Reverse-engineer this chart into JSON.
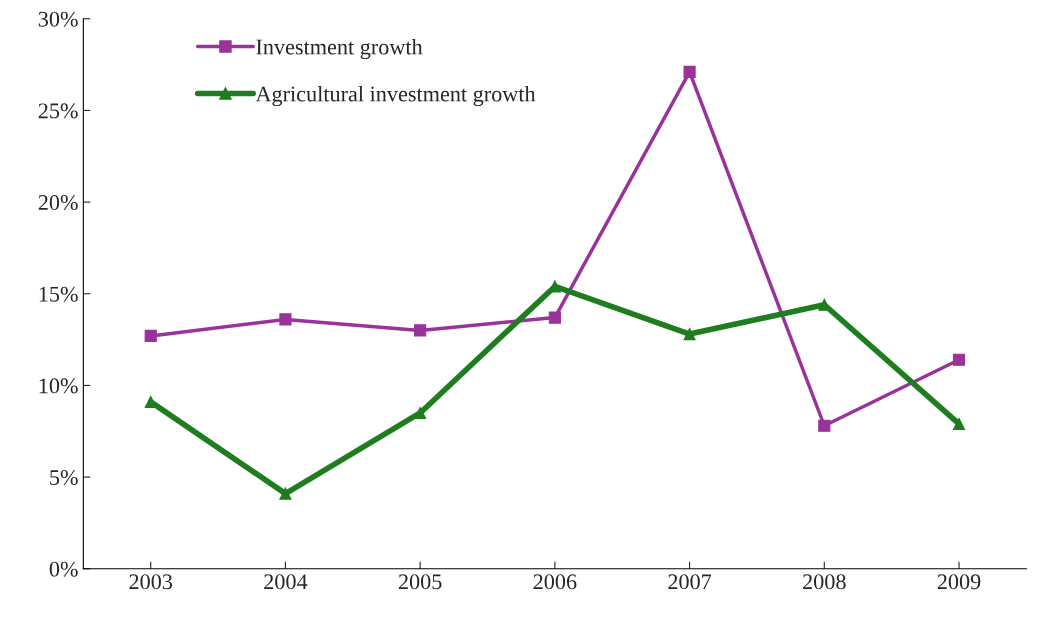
{
  "chart_data": {
    "type": "line",
    "categories": [
      "2003",
      "2004",
      "2005",
      "2006",
      "2007",
      "2008",
      "2009"
    ],
    "series": [
      {
        "name": "Investment growth",
        "color": "#993399",
        "marker": "square",
        "values": [
          12.7,
          13.6,
          13.0,
          13.7,
          27.1,
          7.8,
          11.4
        ]
      },
      {
        "name": "Agricultural investment growth",
        "color": "#1e7d1e",
        "marker": "triangle",
        "values": [
          9.1,
          4.1,
          8.5,
          15.4,
          12.8,
          14.4,
          7.9
        ]
      }
    ],
    "ylim": [
      0,
      30
    ],
    "yticks": [
      {
        "value": 0,
        "label": "0%"
      },
      {
        "value": 5,
        "label": "5%"
      },
      {
        "value": 10,
        "label": "10%"
      },
      {
        "value": 15,
        "label": "15%"
      },
      {
        "value": 20,
        "label": "20%"
      },
      {
        "value": 25,
        "label": "25%"
      },
      {
        "value": 30,
        "label": "30%"
      }
    ],
    "grid": false,
    "legend": "top left",
    "line_style": "solid"
  }
}
